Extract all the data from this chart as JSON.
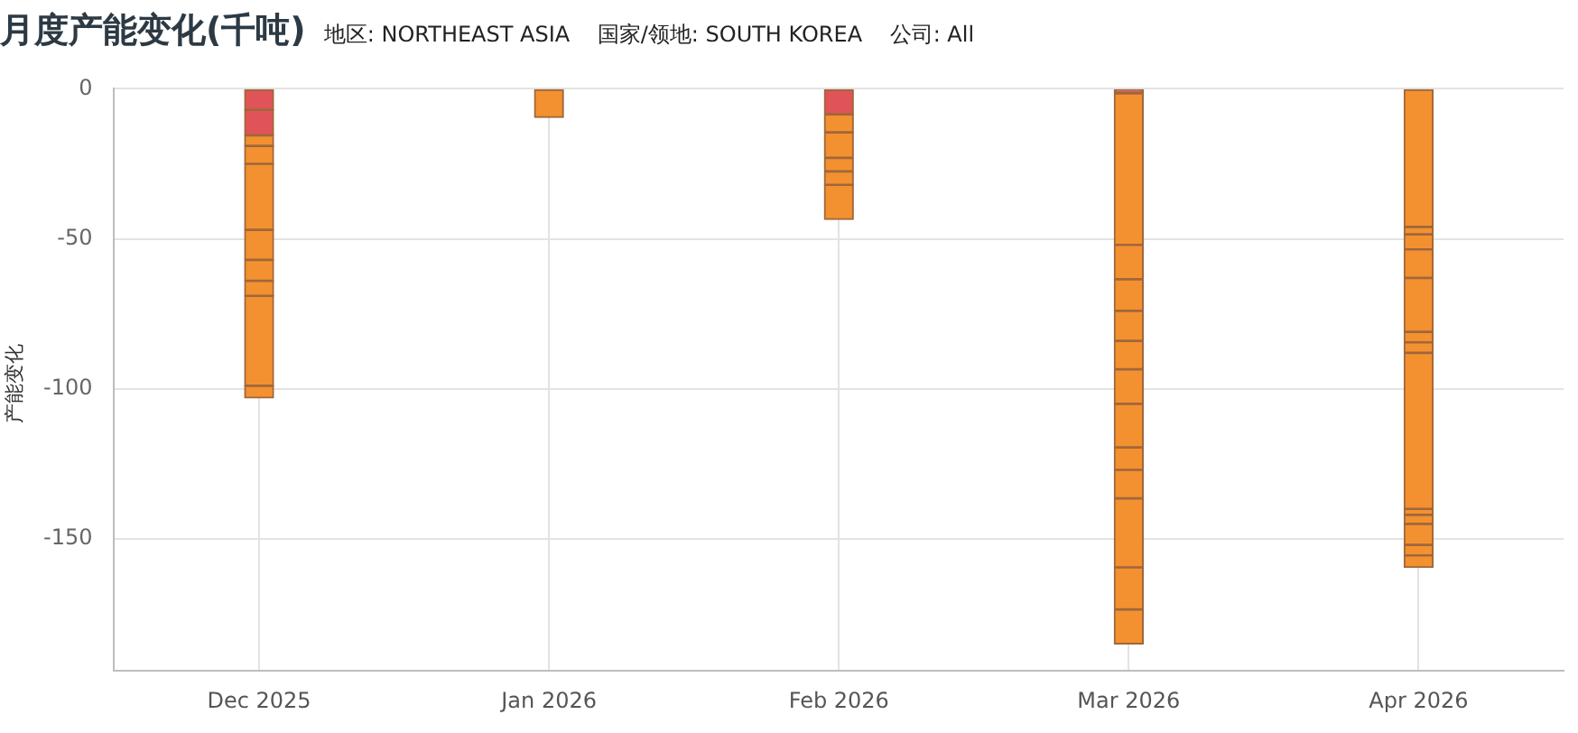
{
  "chart_data": {
    "type": "bar",
    "title": "月度产能变化(千吨)",
    "subtitle": "地区: NORTHEAST ASIA    国家/领地: SOUTH KOREA    公司: All",
    "ylabel": "产能变化",
    "categories": [
      "Dec 2025",
      "Jan 2026",
      "Feb 2026",
      "Mar 2026",
      "Apr 2026"
    ],
    "stacked": true,
    "grid": true,
    "ylim": [
      -194,
      0
    ],
    "yticks": [
      0,
      -50,
      -100,
      -150
    ],
    "series": [
      {
        "values": [
          -7,
          -9.5,
          -8.5,
          -1.5,
          -46
        ],
        "colors": [
          "#e05459",
          "#f39130",
          "#e05459",
          "#e05459",
          "#f39130"
        ]
      },
      {
        "values": [
          -8.5,
          null,
          -6,
          -50.5,
          -2.5
        ],
        "colors": [
          "#e05459",
          "#f39130",
          "#f39130",
          "#f39130",
          "#f39130"
        ]
      },
      {
        "values": [
          -3.5,
          null,
          -8.5,
          -11.5,
          -5
        ],
        "color": "#f39130"
      },
      {
        "values": [
          -6,
          null,
          -4.5,
          -10.5,
          -9.5
        ],
        "color": "#f39130"
      },
      {
        "values": [
          -22,
          null,
          -4.5,
          -10,
          -18
        ],
        "color": "#f39130"
      },
      {
        "values": [
          -10,
          null,
          -11.5,
          -9.5,
          -3.5
        ],
        "color": "#f39130"
      },
      {
        "values": [
          -7,
          null,
          null,
          -11.5,
          -3.5
        ],
        "color": "#f39130"
      },
      {
        "values": [
          -5,
          null,
          null,
          -14.5,
          -52
        ],
        "color": "#f39130"
      },
      {
        "values": [
          -30,
          null,
          null,
          -7.5,
          -2
        ],
        "color": "#f39130"
      },
      {
        "values": [
          -4,
          null,
          null,
          -9.5,
          -3
        ],
        "color": "#f39130"
      },
      {
        "values": [
          null,
          null,
          null,
          -23,
          -7
        ],
        "color": "#f39130"
      },
      {
        "values": [
          null,
          null,
          null,
          -14,
          -3.5
        ],
        "color": "#f39130"
      },
      {
        "values": [
          null,
          null,
          null,
          -11.5,
          -4
        ],
        "color": "#f39130"
      }
    ]
  }
}
